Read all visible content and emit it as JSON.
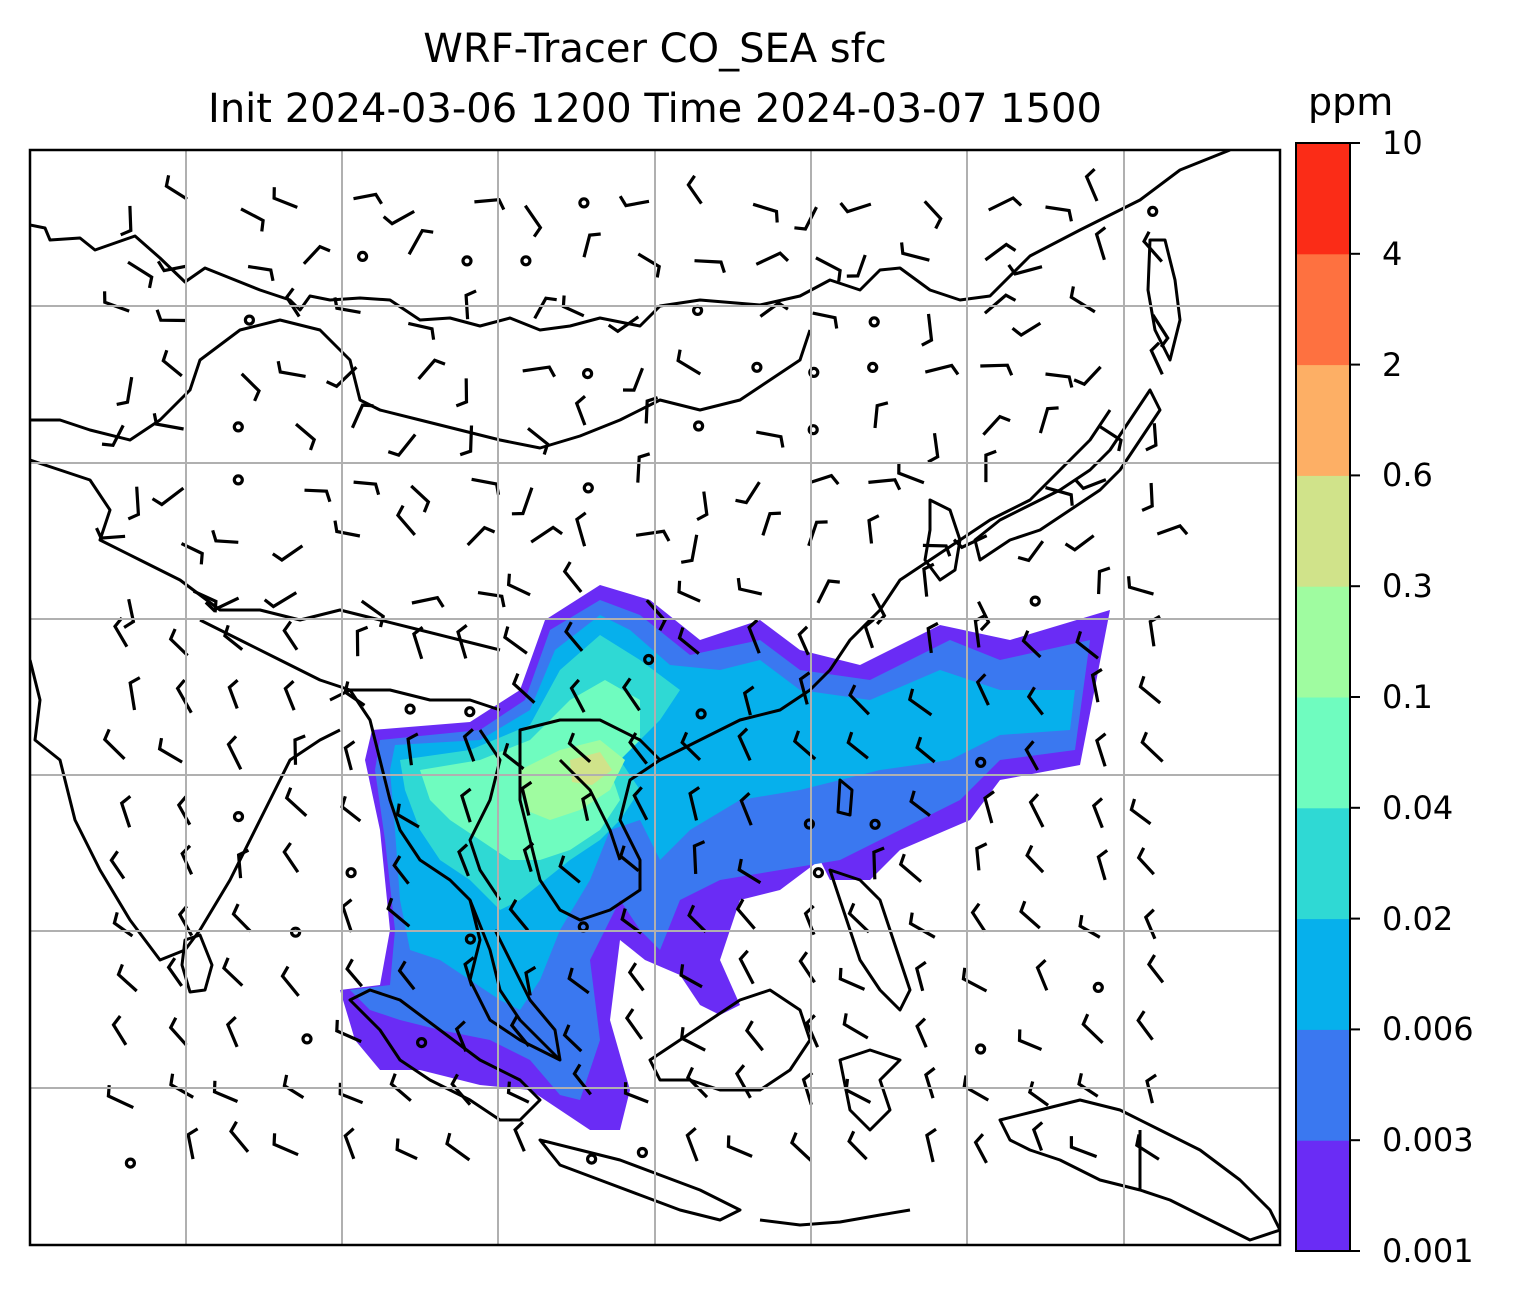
{
  "title": {
    "line1": "WRF-Tracer CO_SEA sfc",
    "line2": "Init 2024-03-06 1200 Time 2024-03-07 1500"
  },
  "colorbar": {
    "unit": "ppm",
    "levels": [
      "0.001",
      "0.003",
      "0.006",
      "0.02",
      "0.04",
      "0.1",
      "0.3",
      "0.6",
      "2",
      "4",
      "10"
    ],
    "colors": [
      "#6a2cf5",
      "#3a78f0",
      "#06b0ec",
      "#2fd9d4",
      "#6ffcbf",
      "#9ffca0",
      "#d0e38a",
      "#fdaf65",
      "#fe7140",
      "#fb2c17"
    ]
  },
  "map": {
    "type": "filled-contour + wind-barbs",
    "field": "CO_SEA tracer surface concentration",
    "gridlines": true,
    "coastlines": true
  }
}
